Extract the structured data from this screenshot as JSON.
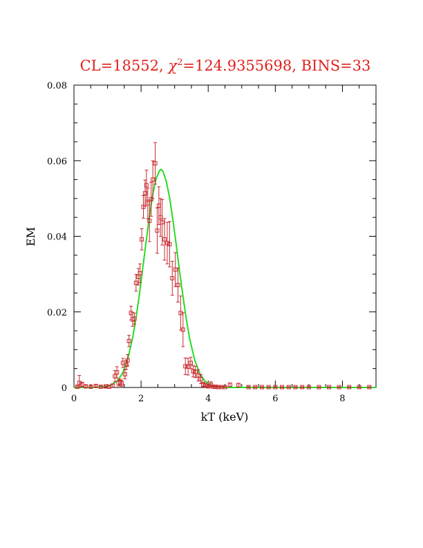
{
  "chart_data": {
    "type": "scatter",
    "title": {
      "prefix": "CL=18552,  ",
      "chi_symbol": "χ",
      "chi_sup": "2",
      "suffix": "=124.9355698,  BINS=33"
    },
    "xlabel": "kT (keV)",
    "ylabel": "EM",
    "xlim": [
      0,
      9
    ],
    "ylim": [
      0,
      0.08
    ],
    "x_ticks": [
      0,
      2,
      4,
      6,
      8
    ],
    "x_tick_labels": [
      "0",
      "2",
      "4",
      "6",
      "8"
    ],
    "y_ticks": [
      0,
      0.02,
      0.04,
      0.06,
      0.08
    ],
    "y_tick_labels": [
      "0",
      "0.02",
      "0.04",
      "0.06",
      "0.08"
    ],
    "colors": {
      "title": "#e0201b",
      "data": "#c8282e",
      "fit": "#22dd22"
    },
    "series": [
      {
        "kind": "data-with-errors",
        "x": [
          0.1,
          0.16,
          0.24,
          0.35,
          0.5,
          0.65,
          0.8,
          0.95,
          1.05,
          1.15,
          1.22,
          1.28,
          1.33,
          1.38,
          1.42,
          1.46,
          1.52,
          1.56,
          1.6,
          1.64,
          1.7,
          1.75,
          1.8,
          1.85,
          1.92,
          1.97,
          2.02,
          2.07,
          2.12,
          2.16,
          2.2,
          2.25,
          2.3,
          2.35,
          2.42,
          2.48,
          2.53,
          2.58,
          2.63,
          2.7,
          2.78,
          2.85,
          2.93,
          3.02,
          3.1,
          3.18,
          3.25,
          3.32,
          3.4,
          3.48,
          3.55,
          3.62,
          3.7,
          3.78,
          3.85,
          3.92,
          4.0,
          4.08,
          4.15,
          4.22,
          4.3,
          4.38,
          4.5,
          4.65,
          4.9,
          5.2,
          5.4,
          5.6,
          5.8,
          6.0,
          6.2,
          6.4,
          6.6,
          6.8,
          7.0,
          7.3,
          7.6,
          7.9,
          8.2,
          8.5,
          8.8
        ],
        "y": [
          0.0002,
          0.0012,
          0.0008,
          0.0003,
          0.0002,
          0.0004,
          0.0002,
          0.0003,
          0.0002,
          0.0005,
          0.003,
          0.004,
          0.0012,
          0.0014,
          0.0011,
          0.0065,
          0.0035,
          0.006,
          0.0072,
          0.0123,
          0.0197,
          0.018,
          0.0182,
          0.0277,
          0.0293,
          0.0302,
          0.0392,
          0.0478,
          0.0514,
          0.0535,
          0.0487,
          0.0441,
          0.0498,
          0.055,
          0.0593,
          0.0415,
          0.0481,
          0.045,
          0.0437,
          0.0392,
          0.0382,
          0.0379,
          0.0289,
          0.0312,
          0.0271,
          0.0197,
          0.0153,
          0.0056,
          0.0055,
          0.0065,
          0.0043,
          0.0041,
          0.0032,
          0.0022,
          0.0008,
          0.0006,
          0.0003,
          0.0007,
          0.0002,
          0.0002,
          0.0001,
          0.0001,
          0.0001,
          0.0007,
          0.0006,
          0.0001,
          0.0001,
          0.0001,
          0.0001,
          0.0001,
          0.0001,
          0.0001,
          0.0001,
          0.0001,
          0.0001,
          0.0001,
          0.0001,
          0.0001,
          0.0001,
          0.0001,
          0.0001
        ],
        "err": [
          0.0002,
          0.002,
          0.0006,
          0.0003,
          0.0002,
          0.0003,
          0.0002,
          0.0002,
          0.0002,
          0.0004,
          0.0015,
          0.0015,
          0.0008,
          0.0008,
          0.0008,
          0.0012,
          0.0012,
          0.0012,
          0.0015,
          0.0015,
          0.0018,
          0.0018,
          0.0015,
          0.0022,
          0.0022,
          0.0025,
          0.0028,
          0.003,
          0.0035,
          0.004,
          0.004,
          0.0055,
          0.0045,
          0.005,
          0.0055,
          0.006,
          0.005,
          0.005,
          0.006,
          0.0055,
          0.0055,
          0.006,
          0.0045,
          0.0045,
          0.0045,
          0.0045,
          0.0045,
          0.0022,
          0.0022,
          0.0015,
          0.0015,
          0.0015,
          0.0015,
          0.0012,
          0.0006,
          0.0005,
          0.0003,
          0.0008,
          0.0002,
          0.0002,
          0.0002,
          0.0002,
          0.0002,
          0.0005,
          0.0005,
          0.0002,
          0.0001,
          0.0001,
          0.0001,
          0.0001,
          0.0001,
          0.0001,
          0.0001,
          0.0001,
          0.0001,
          0.0001,
          0.0001,
          0.0001,
          0.0001,
          0.0001,
          0.0001
        ]
      },
      {
        "kind": "fit-curve",
        "x": [
          0.0,
          0.5,
          0.9,
          1.1,
          1.3,
          1.45,
          1.6,
          1.75,
          1.85,
          1.95,
          2.05,
          2.15,
          2.25,
          2.35,
          2.45,
          2.55,
          2.6,
          2.65,
          2.75,
          2.85,
          2.95,
          3.05,
          3.15,
          3.25,
          3.35,
          3.45,
          3.6,
          3.75,
          3.9,
          4.1,
          4.3,
          4.6,
          5.0,
          6.0,
          7.0,
          8.0,
          9.0
        ],
        "y": [
          0.0,
          0.0,
          0.0002,
          0.0006,
          0.0018,
          0.0038,
          0.0074,
          0.0132,
          0.0184,
          0.0246,
          0.0315,
          0.0386,
          0.0454,
          0.0512,
          0.0553,
          0.0574,
          0.0577,
          0.0572,
          0.0546,
          0.0502,
          0.0443,
          0.0376,
          0.0306,
          0.024,
          0.0179,
          0.0128,
          0.0072,
          0.0037,
          0.0017,
          0.0005,
          0.0001,
          0.0,
          0.0,
          0.0,
          0.0,
          0.0,
          0.0
        ]
      }
    ]
  }
}
